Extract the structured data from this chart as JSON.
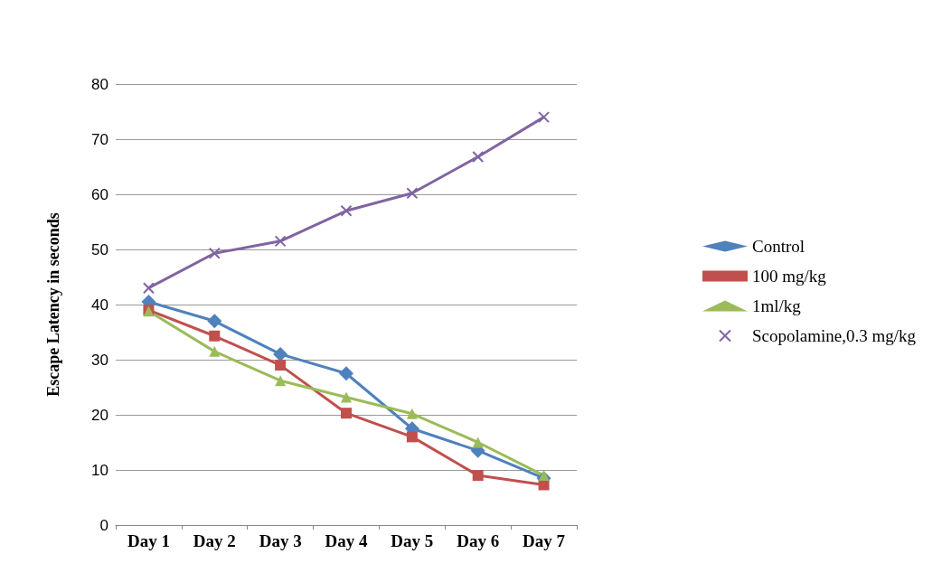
{
  "chart_data": {
    "type": "line",
    "ylabel": "Escape Latency in seconds",
    "categories": [
      "Day 1",
      "Day 2",
      "Day 3",
      "Day 4",
      "Day 5",
      "Day 6",
      "Day 7"
    ],
    "series": [
      {
        "name": "Control",
        "color": "#4f81bd",
        "marker": "diamond",
        "values": [
          40.5,
          37,
          31,
          27.5,
          17.5,
          13.5,
          8.5
        ]
      },
      {
        "name": "100 mg/kg",
        "color": "#c0504d",
        "marker": "square",
        "values": [
          39,
          34.3,
          29,
          20.3,
          16,
          9,
          7.3
        ]
      },
      {
        "name": "1ml/kg",
        "color": "#9bbb59",
        "marker": "triangle",
        "values": [
          38.8,
          31.5,
          26.2,
          23.2,
          20.2,
          15,
          9
        ]
      },
      {
        "name": "Scopolamine,0.3 mg/kg",
        "color": "#8064a2",
        "marker": "cross",
        "values": [
          43,
          49.3,
          51.5,
          57,
          60.2,
          66.8,
          74
        ]
      }
    ],
    "ylim": [
      0,
      80
    ],
    "yticks": [
      0,
      10,
      20,
      30,
      40,
      50,
      60,
      70,
      80
    ],
    "grid": "y",
    "legend": "right"
  }
}
